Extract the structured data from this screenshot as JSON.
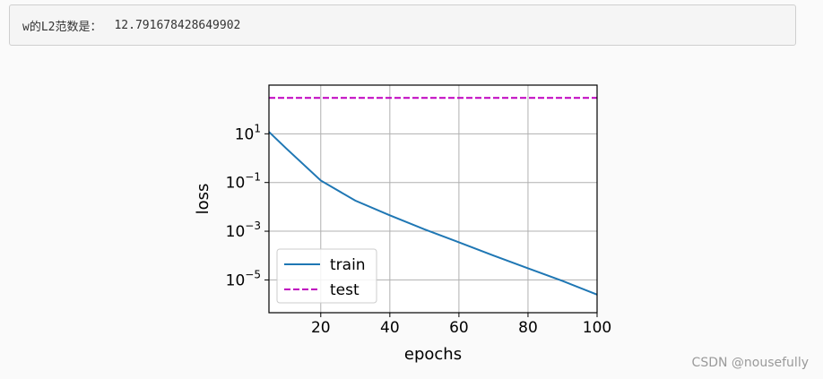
{
  "output": {
    "label": "w的L2范数是：",
    "value": "12.791678428649902"
  },
  "chart_data": {
    "type": "line",
    "xlabel": "epochs",
    "ylabel": "loss",
    "xlim": [
      5,
      100
    ],
    "yscale": "log",
    "ylim": [
      4.5e-07,
      1000
    ],
    "xticks": [
      20,
      40,
      60,
      80,
      100
    ],
    "yticks": [
      {
        "value": 10,
        "base": "10",
        "exp": "1"
      },
      {
        "value": 0.1,
        "base": "10",
        "exp": "−1"
      },
      {
        "value": 0.001,
        "base": "10",
        "exp": "−3"
      },
      {
        "value": 1e-05,
        "base": "10",
        "exp": "−5"
      }
    ],
    "grid": true,
    "legend": "lower-left",
    "series": [
      {
        "name": "train",
        "color": "#1f77b4",
        "dash": "solid",
        "x": [
          5,
          10,
          20,
          30,
          40,
          50,
          60,
          70,
          80,
          90,
          100
        ],
        "y": [
          12,
          2.5,
          0.12,
          0.018,
          0.0045,
          0.0012,
          0.00035,
          0.0001,
          3e-05,
          9e-06,
          2.5e-06
        ]
      },
      {
        "name": "test",
        "color": "#bf00bf",
        "dash": "dashed",
        "x": [
          5,
          100
        ],
        "y": [
          300,
          300
        ]
      }
    ]
  },
  "watermark": "CSDN @nousefully"
}
